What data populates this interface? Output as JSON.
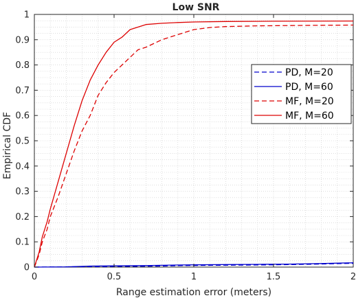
{
  "chart_data": {
    "type": "line",
    "title": "Low SNR",
    "xlabel": "Range estimation error (meters)",
    "ylabel": "Empirical CDF",
    "xlim": [
      0,
      2
    ],
    "ylim": [
      0,
      1
    ],
    "xticks": [
      0,
      0.5,
      1,
      1.5,
      2
    ],
    "xtick_labels": [
      "0",
      "0.5",
      "1",
      "1.5",
      "2"
    ],
    "yticks": [
      0,
      0.1,
      0.2,
      0.3,
      0.4,
      0.5,
      0.6,
      0.7,
      0.8,
      0.9,
      1
    ],
    "ytick_labels": [
      "0",
      "0.1",
      "0.2",
      "0.3",
      "0.4",
      "0.5",
      "0.6",
      "0.7",
      "0.8",
      "0.9",
      "1"
    ],
    "grid": "major and minor, dotted",
    "legend_position": "right",
    "series": [
      {
        "name": "PD, M=20",
        "color": "#0000cc",
        "dash": "dashed",
        "x": [
          0,
          0.2,
          0.4,
          0.6,
          0.8,
          0.9,
          1.1,
          1.3,
          1.5,
          1.7,
          1.85,
          2.0
        ],
        "y": [
          0,
          0.001,
          0.002,
          0.003,
          0.004,
          0.006,
          0.007,
          0.008,
          0.009,
          0.011,
          0.013,
          0.015
        ]
      },
      {
        "name": "PD, M=60",
        "color": "#0000cc",
        "dash": "solid",
        "x": [
          0,
          0.2,
          0.35,
          0.5,
          0.7,
          0.85,
          1.0,
          1.2,
          1.4,
          1.6,
          1.8,
          2.0
        ],
        "y": [
          0,
          0.001,
          0.004,
          0.005,
          0.006,
          0.008,
          0.009,
          0.01,
          0.011,
          0.012,
          0.014,
          0.017
        ]
      },
      {
        "name": "MF, M=20",
        "color": "#dd0000",
        "dash": "dashed",
        "x": [
          0,
          0.03,
          0.05,
          0.08,
          0.1,
          0.15,
          0.2,
          0.25,
          0.3,
          0.35,
          0.4,
          0.45,
          0.5,
          0.55,
          0.6,
          0.65,
          0.7,
          0.8,
          0.9,
          1.0,
          1.1,
          1.2,
          1.4,
          1.6,
          1.8,
          2.0
        ],
        "y": [
          0,
          0.05,
          0.1,
          0.15,
          0.2,
          0.28,
          0.37,
          0.46,
          0.54,
          0.6,
          0.68,
          0.73,
          0.77,
          0.8,
          0.83,
          0.86,
          0.87,
          0.9,
          0.92,
          0.94,
          0.948,
          0.952,
          0.955,
          0.956,
          0.957,
          0.958
        ]
      },
      {
        "name": "MF, M=60",
        "color": "#dd0000",
        "dash": "solid",
        "x": [
          0,
          0.03,
          0.05,
          0.08,
          0.1,
          0.15,
          0.2,
          0.25,
          0.3,
          0.35,
          0.4,
          0.45,
          0.5,
          0.55,
          0.6,
          0.7,
          0.8,
          0.9,
          1.0,
          1.2,
          1.5,
          2.0
        ],
        "y": [
          0,
          0.06,
          0.12,
          0.18,
          0.23,
          0.34,
          0.45,
          0.56,
          0.66,
          0.74,
          0.8,
          0.85,
          0.89,
          0.91,
          0.94,
          0.96,
          0.965,
          0.968,
          0.97,
          0.972,
          0.973,
          0.974
        ]
      }
    ]
  }
}
